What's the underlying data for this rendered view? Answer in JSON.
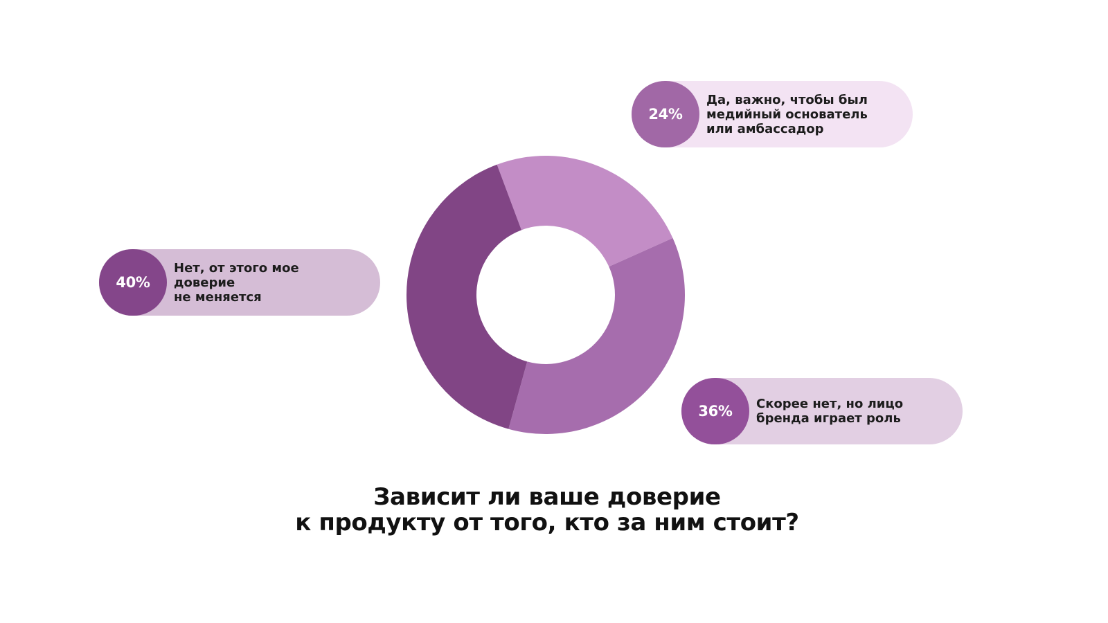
{
  "chart_data": {
    "type": "pie",
    "title": "Зависит ли ваше доверие\nк продукту от того, кто за ним стоит?",
    "series": [
      {
        "name": "Да, важно, чтобы был\nмедийный основатель\nили амбассадор",
        "value": 24,
        "value_label": "24%",
        "color": "#c38dc6",
        "badge_color": "#a168a6",
        "pill_color": "#f3e3f3"
      },
      {
        "name": "Скорее нет, но лицо\nбренда играет роль",
        "value": 36,
        "value_label": "36%",
        "color": "#a66dad",
        "badge_color": "#93509a",
        "pill_color": "#e2cfe3"
      },
      {
        "name": "Нет, от этого мое доверие\nне меняется",
        "value": 40,
        "value_label": "40%",
        "color": "#814585",
        "badge_color": "#84468a",
        "pill_color": "#d5bdd6"
      }
    ]
  }
}
